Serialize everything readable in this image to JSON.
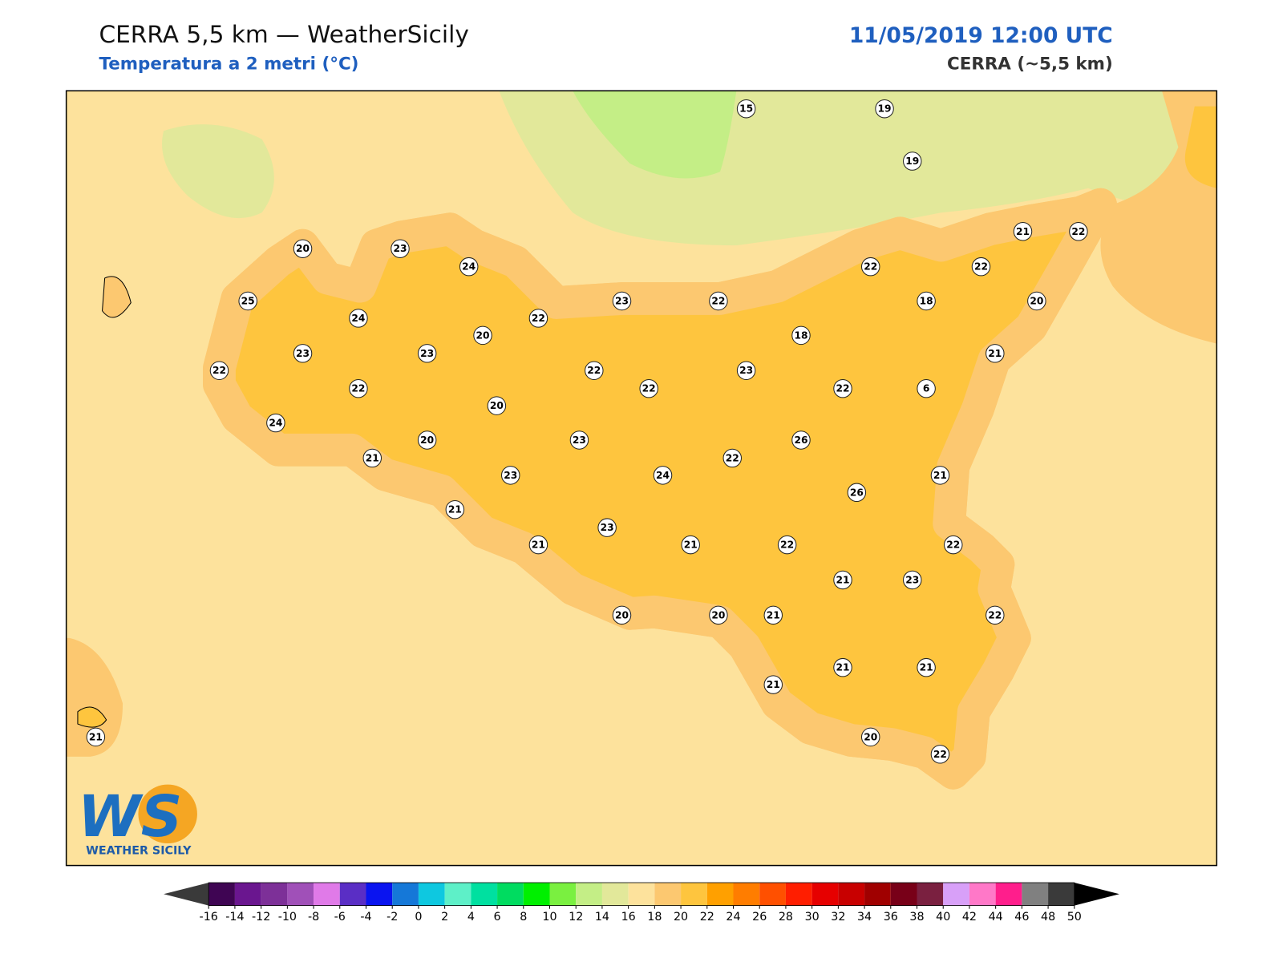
{
  "header": {
    "title": "CERRA 5,5 km — WeatherSicily",
    "subtitle": "Temperatura a 2 metri (°C)",
    "datetime": "11/05/2019 12:00 UTC",
    "source": "CERRA (~5,5 km)"
  },
  "stations": [
    15,
    19,
    19,
    20,
    23,
    24,
    25,
    24,
    22,
    23,
    22,
    22,
    22,
    21,
    22,
    18,
    20,
    18,
    23,
    23,
    20,
    22,
    22,
    22,
    22,
    23,
    22,
    6,
    21,
    20,
    24,
    20,
    23,
    26,
    21,
    23,
    24,
    22,
    21,
    26,
    21,
    23,
    21,
    21,
    22,
    22,
    21,
    23,
    20,
    20,
    21,
    22,
    21,
    21,
    21,
    20,
    22,
    21
  ],
  "logo": {
    "mark": "WS",
    "text": "WEATHER SICILY"
  },
  "colorbar": {
    "ticks": [
      -16,
      -14,
      -12,
      -10,
      -8,
      -6,
      -4,
      -2,
      0,
      2,
      4,
      6,
      8,
      10,
      12,
      14,
      16,
      18,
      20,
      22,
      24,
      26,
      28,
      30,
      32,
      34,
      36,
      38,
      40,
      42,
      44,
      46,
      48,
      50
    ],
    "colors": [
      "#3f0553",
      "#6a168f",
      "#7d3098",
      "#a050b8",
      "#e07ae8",
      "#5a2ec5",
      "#0a14f0",
      "#1578d8",
      "#0ec8e0",
      "#5ef0c8",
      "#00e0a0",
      "#00dc60",
      "#00f000",
      "#7af040",
      "#c4ee86",
      "#e2e89a",
      "#fde29c",
      "#fcc870",
      "#fec53e",
      "#ffa000",
      "#ff7d00",
      "#ff5000",
      "#ff1e00",
      "#e60000",
      "#c80000",
      "#a00000",
      "#780018",
      "#7a2040",
      "#d8a0f8",
      "#ff78c8",
      "#ff1e8c",
      "#808080",
      "#3a3a3a"
    ],
    "under_color": "#3a3a3a",
    "over_color": "#000000"
  }
}
